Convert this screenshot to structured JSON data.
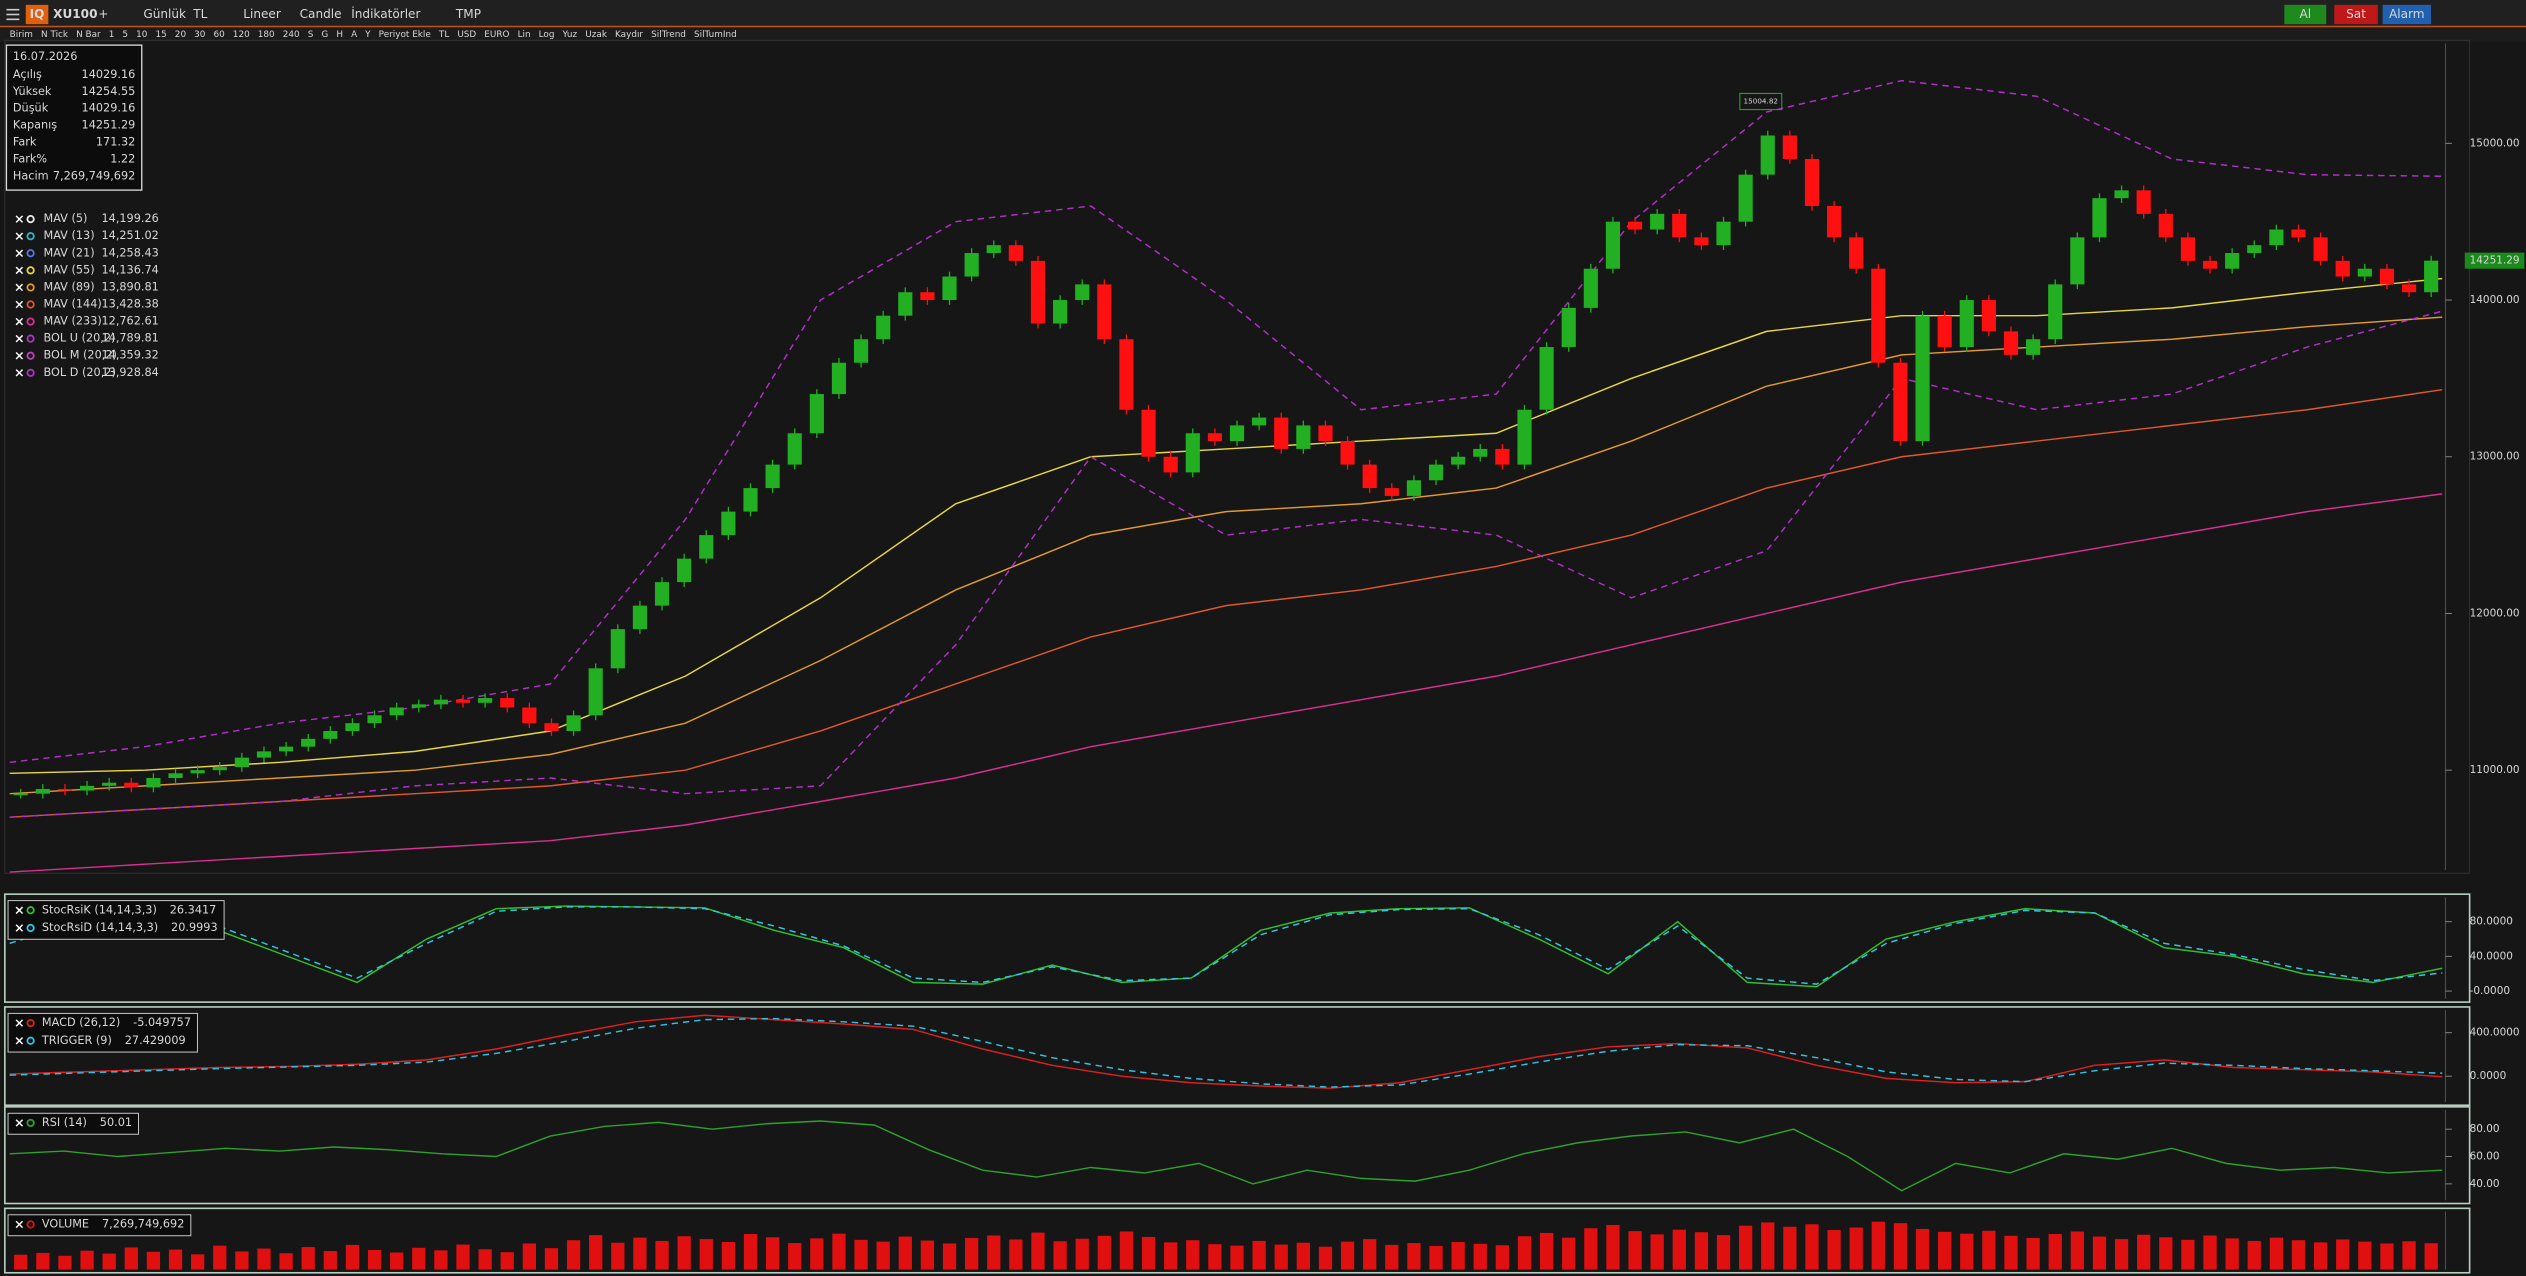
{
  "toolbar": {
    "logo": "IQ",
    "symbol": "XU100",
    "add": "+",
    "period": "Günlük",
    "currency": "TL",
    "scale": "Lineer",
    "style": "Candle",
    "indicators": "İndikatörler",
    "template": "TMP",
    "buy": "Al",
    "sell": "Sat",
    "alarm": "Alarm"
  },
  "toolbar2": [
    "Birim",
    "N Tick",
    "N Bar",
    "1",
    "5",
    "10",
    "15",
    "20",
    "30",
    "60",
    "120",
    "180",
    "240",
    "S",
    "G",
    "H",
    "A",
    "Y",
    "Periyot Ekle",
    "TL",
    "USD",
    "EURO",
    "Lin",
    "Log",
    "Yuz",
    "Uzak",
    "Kaydır",
    "SilTrend",
    "SilTumInd"
  ],
  "info": {
    "date": "16.07.2026",
    "rows": [
      [
        "Açılış",
        "14029.16"
      ],
      [
        "Yüksek",
        "14254.55"
      ],
      [
        "Düşük",
        "14029.16"
      ],
      [
        "Kapanış",
        "14251.29"
      ],
      [
        "Fark",
        "171.32"
      ],
      [
        "Fark%",
        "1.22"
      ],
      [
        "Hacim",
        "7,269,749,692"
      ]
    ]
  },
  "chart_data": [
    {
      "type": "candlestick",
      "closes": [
        10850,
        10880,
        10870,
        10900,
        10920,
        10890,
        10950,
        10980,
        11000,
        11020,
        11080,
        11120,
        11150,
        11200,
        11250,
        11300,
        11350,
        11400,
        11420,
        11450,
        11430,
        11460,
        11400,
        11300,
        11250,
        11350,
        11650,
        11900,
        12050,
        12200,
        12350,
        12500,
        12650,
        12800,
        12950,
        13150,
        13400,
        13600,
        13750,
        13900,
        14050,
        14000,
        14150,
        14300,
        14350,
        14250,
        13850,
        14000,
        14100,
        13750,
        13300,
        13000,
        12900,
        13150,
        13100,
        13200,
        13250,
        13050,
        13200,
        13100,
        12950,
        12800,
        12750,
        12850,
        12950,
        13000,
        13050,
        12950,
        13300,
        13700,
        13950,
        14200,
        14500,
        14450,
        14550,
        14400,
        14350,
        14500,
        14800,
        15050,
        14900,
        14600,
        14400,
        14200,
        13600,
        13100,
        13900,
        13700,
        14000,
        13800,
        13650,
        13750,
        14100,
        14400,
        14650,
        14700,
        14550,
        14400,
        14250,
        14200,
        14300,
        14350,
        14450,
        14400,
        14250,
        14150,
        14200,
        14100,
        14050,
        14251.29
      ],
      "up_color": "#22b022",
      "down_color": "#ff1010",
      "ylim": [
        10363,
        15637
      ],
      "yticks": [
        {
          "value": 11000,
          "label": "11000.00"
        },
        {
          "value": 12000,
          "label": "12000.00"
        },
        {
          "value": 13000,
          "label": "13000.00"
        },
        {
          "value": 14000,
          "label": "14000.00"
        },
        {
          "value": 15000,
          "label": "15000.00"
        }
      ],
      "last_label": "14251.29",
      "peak_label": "15004.82",
      "series": [
        {
          "name": "MAV (5)",
          "value_label": "14,199.26",
          "color": "#f0f0f0"
        },
        {
          "name": "MAV (13)",
          "value_label": "14,251.02",
          "color": "#30b8c8"
        },
        {
          "name": "MAV (21)",
          "value_label": "14,258.43",
          "color": "#5a78d8"
        },
        {
          "name": "MAV (55)",
          "value_label": "14,136.74",
          "color": "#e8d840",
          "values": [
            10980,
            11000,
            11050,
            11120,
            11250,
            11600,
            12100,
            12700,
            13000,
            13050,
            13100,
            13150,
            13500,
            13800,
            13900,
            13900,
            13950,
            14050,
            14137
          ]
        },
        {
          "name": "MAV (89)",
          "value_label": "13,890.81",
          "color": "#e09a30",
          "values": [
            10850,
            10900,
            10950,
            11000,
            11100,
            11300,
            11700,
            12150,
            12500,
            12650,
            12700,
            12800,
            13100,
            13450,
            13650,
            13700,
            13750,
            13830,
            13891
          ]
        },
        {
          "name": "MAV (144)",
          "value_label": "13,428.38",
          "color": "#e0582a",
          "values": [
            10700,
            10750,
            10800,
            10850,
            10900,
            11000,
            11250,
            11550,
            11850,
            12050,
            12150,
            12300,
            12500,
            12800,
            13000,
            13100,
            13200,
            13300,
            13428
          ]
        },
        {
          "name": "MAV (233)",
          "value_label": "12,762.61",
          "color": "#d83090",
          "values": [
            10350,
            10400,
            10450,
            10500,
            10550,
            10650,
            10800,
            10950,
            11150,
            11300,
            11450,
            11600,
            11800,
            12000,
            12200,
            12350,
            12500,
            12650,
            12763
          ]
        },
        {
          "name": "BOL U (20,2)",
          "value_label": "14,789.81",
          "color": "#b030c8",
          "dash": true,
          "values": [
            11050,
            11150,
            11300,
            11400,
            11550,
            12600,
            14000,
            14500,
            14600,
            14000,
            13300,
            13400,
            14500,
            15200,
            15400,
            15300,
            14900,
            14800,
            14790
          ]
        },
        {
          "name": "BOL M (20,2)",
          "value_label": "14,359.32",
          "color": "#c040c0"
        },
        {
          "name": "BOL D (20,2)",
          "value_label": "13,928.84",
          "color": "#b030c8",
          "dash": true,
          "values": [
            10700,
            10750,
            10800,
            10900,
            10950,
            10850,
            10900,
            11800,
            13000,
            12500,
            12600,
            12500,
            12100,
            12400,
            13500,
            13300,
            13400,
            13700,
            13929
          ]
        }
      ]
    },
    {
      "type": "line",
      "ylim": [
        -9,
        108
      ],
      "yticks": [
        {
          "value": 0,
          "label": "-0.0000"
        },
        {
          "value": 40,
          "label": "40.0000"
        },
        {
          "value": 80,
          "label": "80.0000"
        }
      ],
      "series": [
        {
          "name": "StocRsiK (14,14,3,3)",
          "value_label": "26.3417",
          "color": "#30c030",
          "values": [
            60,
            85,
            90,
            70,
            40,
            10,
            60,
            95,
            98,
            97,
            96,
            70,
            50,
            10,
            8,
            30,
            10,
            15,
            70,
            90,
            95,
            96,
            60,
            20,
            80,
            10,
            5,
            60,
            80,
            95,
            90,
            50,
            40,
            20,
            10,
            26.34
          ]
        },
        {
          "name": "StocRsiD (14,14,3,3)",
          "value_label": "20.9993",
          "color": "#30c8e0",
          "dash": true,
          "values": [
            55,
            80,
            88,
            75,
            45,
            15,
            55,
            92,
            97,
            97,
            95,
            75,
            52,
            15,
            10,
            28,
            12,
            15,
            65,
            88,
            94,
            95,
            65,
            25,
            75,
            15,
            8,
            55,
            78,
            93,
            90,
            55,
            42,
            25,
            12,
            21
          ]
        }
      ]
    },
    {
      "type": "line",
      "ylim": [
        -237,
        607
      ],
      "yticks": [
        {
          "value": 0,
          "label": "0.0000"
        },
        {
          "value": 400,
          "label": "400.0000"
        }
      ],
      "series": [
        {
          "name": "MACD (26,12)",
          "value_label": "-5.049757",
          "color": "#e02020",
          "values": [
            20,
            40,
            60,
            80,
            90,
            110,
            150,
            250,
            380,
            500,
            560,
            520,
            480,
            430,
            250,
            100,
            0,
            -60,
            -90,
            -110,
            -60,
            60,
            180,
            270,
            300,
            260,
            100,
            -20,
            -60,
            -50,
            100,
            150,
            80,
            60,
            40,
            -5.05
          ]
        },
        {
          "name": "TRIGGER (9)",
          "value_label": "27.429009",
          "color": "#30c0e0",
          "dash": true,
          "values": [
            10,
            30,
            50,
            70,
            85,
            100,
            130,
            210,
            320,
            440,
            520,
            530,
            500,
            460,
            320,
            170,
            60,
            -20,
            -70,
            -100,
            -80,
            20,
            130,
            230,
            290,
            280,
            170,
            40,
            -30,
            -50,
            50,
            120,
            100,
            70,
            50,
            27.43
          ]
        }
      ]
    },
    {
      "type": "line",
      "ylim": [
        28,
        94
      ],
      "yticks": [
        {
          "value": 40,
          "label": "40.00"
        },
        {
          "value": 60,
          "label": "60.00"
        },
        {
          "value": 80,
          "label": "80.00"
        }
      ],
      "series": [
        {
          "name": "RSI (14)",
          "value_label": "50.01",
          "color": "#2ea02e",
          "values": [
            62,
            64,
            60,
            63,
            66,
            64,
            67,
            65,
            62,
            60,
            75,
            82,
            85,
            80,
            84,
            86,
            83,
            65,
            50,
            45,
            52,
            48,
            55,
            40,
            50,
            44,
            42,
            50,
            62,
            70,
            75,
            78,
            70,
            80,
            60,
            35,
            55,
            48,
            62,
            58,
            66,
            55,
            50,
            52,
            48,
            50.01
          ]
        }
      ]
    },
    {
      "type": "bar",
      "ylim": [
        0,
        16000000000
      ],
      "color": "#e01010",
      "series": [
        {
          "name": "VOLUME",
          "value_label": "7,269,749,692",
          "values": [
            4100000000.0,
            4600000000.0,
            3800000000.0,
            5200000000.0,
            4400000000.0,
            6100000000.0,
            4900000000.0,
            5500000000.0,
            4200000000.0,
            6600000000.0,
            5000000000.0,
            5800000000.0,
            4500000000.0,
            6200000000.0,
            5100000000.0,
            6800000000.0,
            5400000000.0,
            4700000000.0,
            6000000000.0,
            5300000000.0,
            6900000000.0,
            5600000000.0,
            4800000000.0,
            7200000000.0,
            5900000000.0,
            8100000000.0,
            9500000000.0,
            7400000000.0,
            8800000000.0,
            7900000000.0,
            9200000000.0,
            8400000000.0,
            7600000000.0,
            9800000000.0,
            8900000000.0,
            7300000000.0,
            8600000000.0,
            9900000000.0,
            8200000000.0,
            7700000000.0,
            9100000000.0,
            8000000000.0,
            7200000000.0,
            8700000000.0,
            9400000000.0,
            8300000000.0,
            10200000000.0,
            7800000000.0,
            8500000000.0,
            9300000000.0,
            10500000000.0,
            9000000000.0,
            7500000000.0,
            8100000000.0,
            7000000000.0,
            6600000000.0,
            7900000000.0,
            6900000000.0,
            7400000000.0,
            6300000000.0,
            7700000000.0,
            8400000000.0,
            6800000000.0,
            7300000000.0,
            6500000000.0,
            7600000000.0,
            7100000000.0,
            6700000000.0,
            9200000000.0,
            10100000000.0,
            8800000000.0,
            11400000000.0,
            12300000000.0,
            10600000000.0,
            9700000000.0,
            11000000000.0,
            10300000000.0,
            9500000000.0,
            12100000000.0,
            13000000000.0,
            11800000000.0,
            12500000000.0,
            10900000000.0,
            11600000000.0,
            13200000000.0,
            12800000000.0,
            11200000000.0,
            10400000000.0,
            9900000000.0,
            10700000000.0,
            9300000000.0,
            8700000000.0,
            9800000000.0,
            10500000000.0,
            9100000000.0,
            8400000000.0,
            9600000000.0,
            8900000000.0,
            8200000000.0,
            9400000000.0,
            8600000000.0,
            7900000000.0,
            8800000000.0,
            8100000000.0,
            7500000000.0,
            8300000000.0,
            7700000000.0,
            7200000000.0,
            7800000000.0,
            7269749692
          ]
        }
      ]
    }
  ]
}
